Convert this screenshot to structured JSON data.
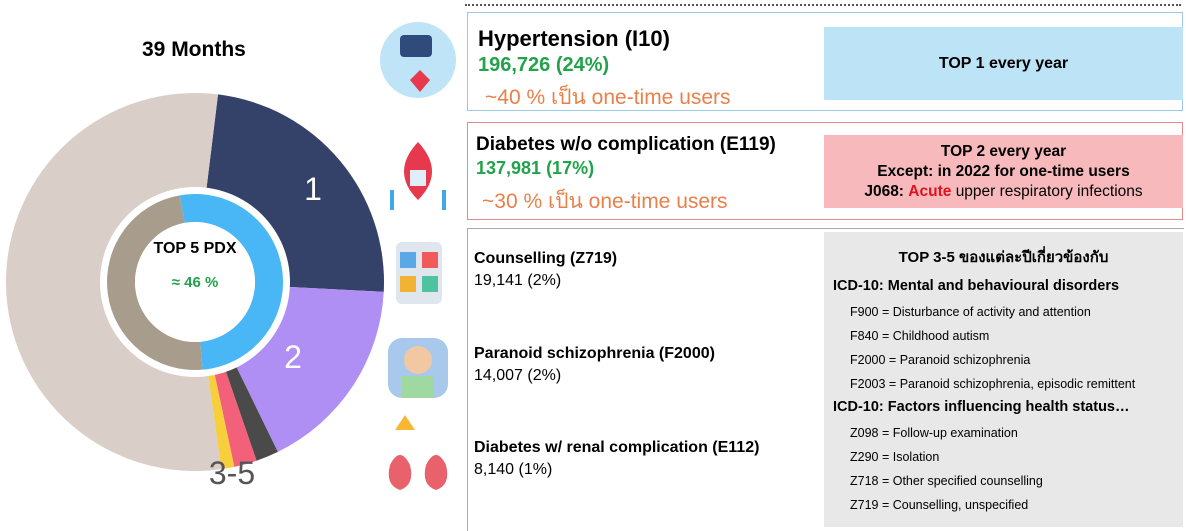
{
  "donut": {
    "title": "39 Months",
    "center_title": "TOP 5 PDX",
    "center_value": "≈ 46 %",
    "segment_labels": [
      "1",
      "2",
      "3-5"
    ]
  },
  "top_items": [
    {
      "name": "Hypertension (I10)",
      "stat": "196,726 (24%)",
      "note": "~40 % เป็น one-time users",
      "badge": [
        "TOP 1 every year"
      ]
    },
    {
      "name": "Diabetes w/o complication (E119)",
      "stat": "137,981 (17%)",
      "note": "~30 % เป็น one-time users",
      "badge": [
        "TOP 2 every year",
        "Except: in 2022 for one-time users"
      ],
      "badge_code": "J068:",
      "badge_highlight": "Acute",
      "badge_rest": "upper respiratory infections"
    }
  ],
  "other_items": [
    {
      "name": "Counselling (Z719)",
      "stat": "19,141 (2%)"
    },
    {
      "name": "Paranoid schizophrenia (F2000)",
      "stat": "14,007 (2%)"
    },
    {
      "name": "Diabetes w/ renal complication (E112)",
      "stat": "8,140 (1%)"
    }
  ],
  "panel": {
    "title": "TOP 3-5 ของแต่ละปีเกี่ยวข้องกับ",
    "sections": [
      {
        "heading": "ICD-10: Mental and behavioural disorders",
        "entries": [
          "F900 = Disturbance of activity and attention",
          "F840 = Childhood autism",
          "F2000 = Paranoid schizophrenia",
          "F2003 = Paranoid schizophrenia, episodic remittent"
        ]
      },
      {
        "heading": "ICD-10: Factors influencing health status…",
        "entries": [
          "Z098 = Follow-up examination",
          "Z290 = Isolation",
          "Z718 = Other specified counselling",
          "Z719 = Counselling, unspecified"
        ]
      }
    ]
  }
}
